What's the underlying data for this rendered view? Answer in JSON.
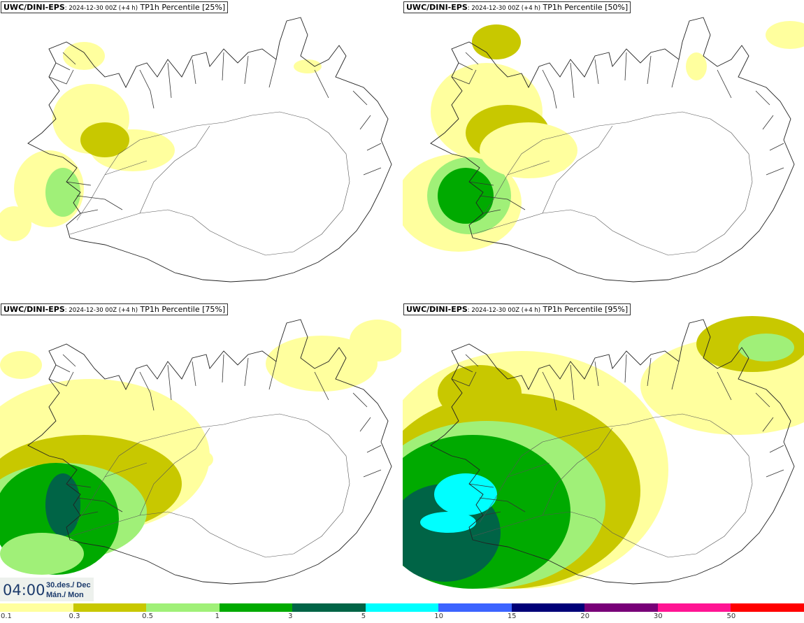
{
  "panels": [
    {
      "model": "UWC/DINI-EPS",
      "run": ": 2024-12-30 00Z (+4 h)",
      "product": " TP1h Percentile [25%]",
      "percentile_level": 1
    },
    {
      "model": "UWC/DINI-EPS",
      "run": ": 2024-12-30 00Z (+4 h)",
      "product": " TP1h Percentile [50%]",
      "percentile_level": 2
    },
    {
      "model": "UWC/DINI-EPS",
      "run": ": 2024-12-30 00Z (+4 h)",
      "product": " TP1h Percentile [75%]",
      "percentile_level": 3
    },
    {
      "model": "UWC/DINI-EPS",
      "run": ": 2024-12-30 00Z (+4 h)",
      "product": " TP1h Percentile [95%]",
      "percentile_level": 4
    }
  ],
  "time": {
    "clock": "04:00",
    "date": "30.des./ Dec",
    "weekday": "Mán./ Mon"
  },
  "colorbar": {
    "labels": [
      "0.1",
      "0.3",
      "0.5",
      "1",
      "3",
      "5",
      "10",
      "15",
      "20",
      "30",
      "50"
    ],
    "colors": [
      "#ffff9e",
      "#c8c800",
      "#a0f078",
      "#00aa00",
      "#006446",
      "#00ffff",
      "#3c64ff",
      "#000078",
      "#780078",
      "#ff1493",
      "#ff0000"
    ]
  }
}
